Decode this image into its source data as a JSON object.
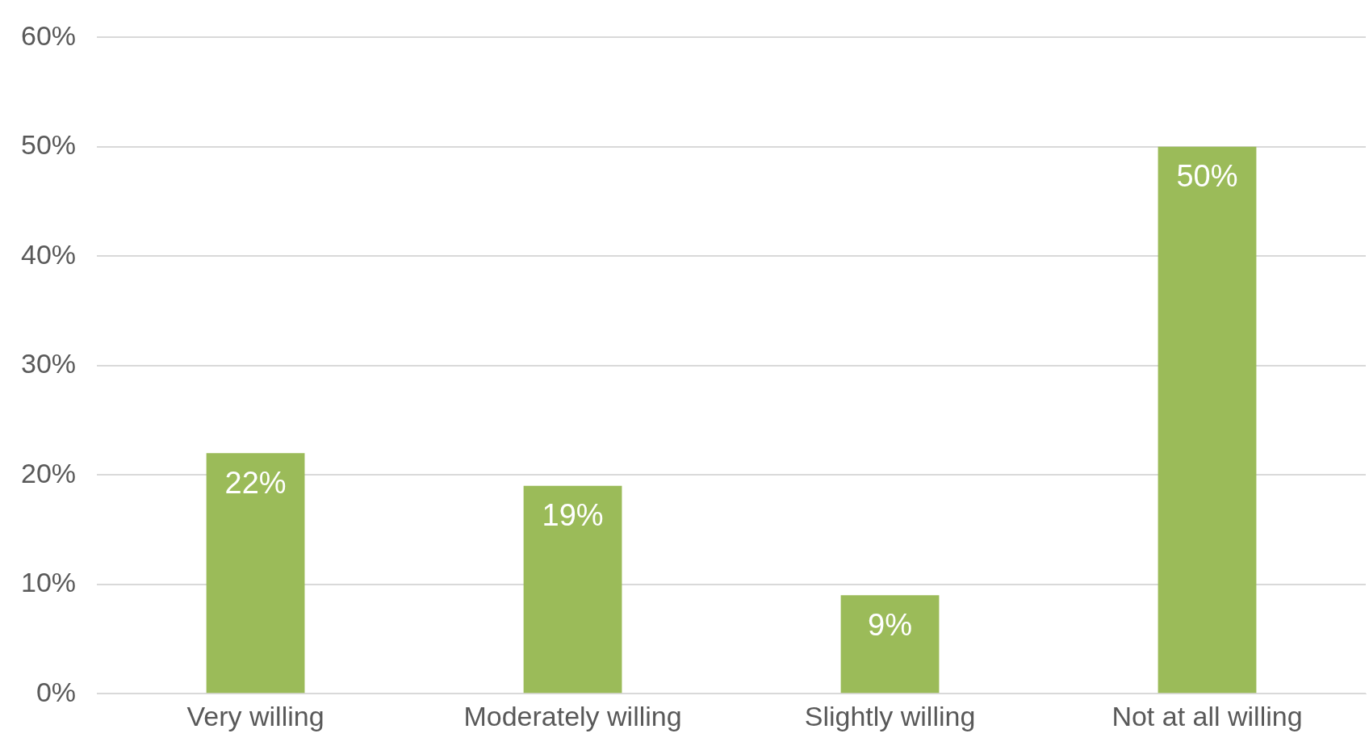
{
  "chart_data": {
    "type": "bar",
    "categories": [
      "Very willing",
      "Moderately willing",
      "Slightly willing",
      "Not at all willing"
    ],
    "values": [
      22,
      19,
      9,
      50
    ],
    "color": "#9bbb59",
    "ylim": [
      0,
      60
    ],
    "yticks": [
      {
        "value": 0,
        "label": "0%"
      },
      {
        "value": 10,
        "label": "10%"
      },
      {
        "value": 20,
        "label": "20%"
      },
      {
        "value": 30,
        "label": "30%"
      },
      {
        "value": 40,
        "label": "40%"
      },
      {
        "value": 50,
        "label": "50%"
      },
      {
        "value": 60,
        "label": "60%"
      }
    ],
    "value_labels": [
      "22%",
      "19%",
      "9%",
      "50%"
    ],
    "grid": "y",
    "legend": false
  }
}
